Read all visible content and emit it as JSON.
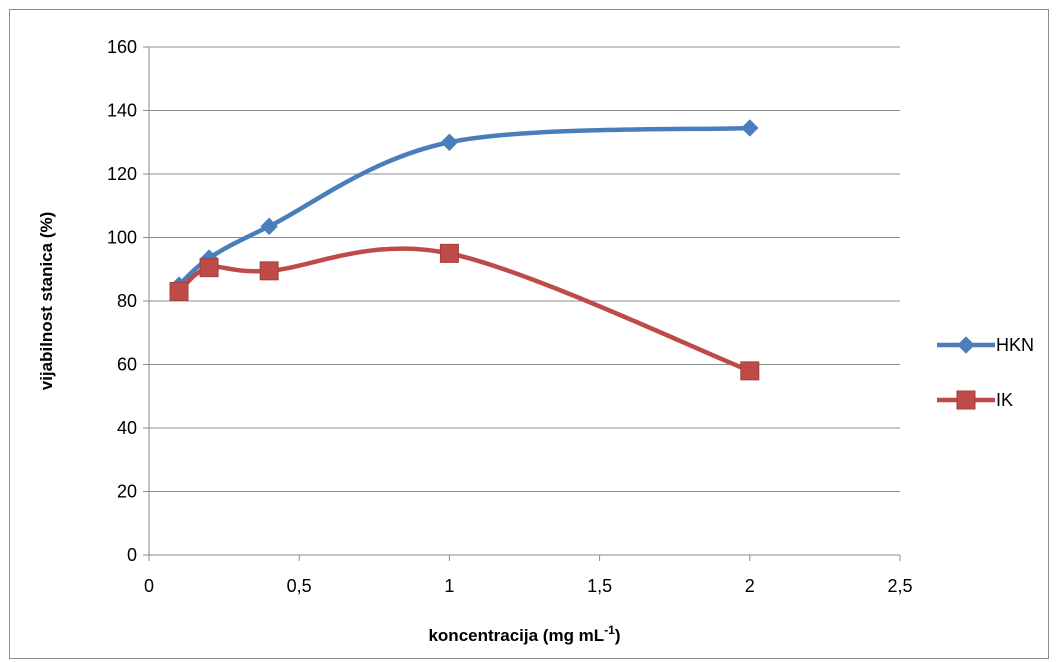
{
  "chart_data": {
    "type": "line",
    "title": "",
    "xlabel": "koncentracija (mg mL",
    "xlabel_superscript": "-1",
    "xlabel_suffix": ")",
    "ylabel": "vijabilnost stanica (%)",
    "xlim": [
      0,
      2.5
    ],
    "ylim": [
      0,
      160
    ],
    "xticks": [
      0,
      0.5,
      1,
      1.5,
      2,
      2.5
    ],
    "xtick_labels": [
      "0",
      "0,5",
      "1",
      "1,5",
      "2",
      "2,5"
    ],
    "yticks": [
      0,
      20,
      40,
      60,
      80,
      100,
      120,
      140,
      160
    ],
    "ytick_labels": [
      "0",
      "20",
      "40",
      "60",
      "80",
      "100",
      "120",
      "140",
      "160"
    ],
    "grid": "horizontal",
    "legend_position": "right",
    "smooth": true,
    "series": [
      {
        "name": "HKN",
        "color": "#4a7ebb",
        "marker": "diamond",
        "x": [
          0.1,
          0.2,
          0.4,
          1,
          2
        ],
        "y": [
          85,
          93.5,
          103.5,
          130,
          134.5
        ]
      },
      {
        "name": "IK",
        "color": "#be4b48",
        "marker": "square",
        "x": [
          0.1,
          0.2,
          0.4,
          1,
          2
        ],
        "y": [
          83,
          90.5,
          89.5,
          95,
          58
        ]
      }
    ]
  }
}
